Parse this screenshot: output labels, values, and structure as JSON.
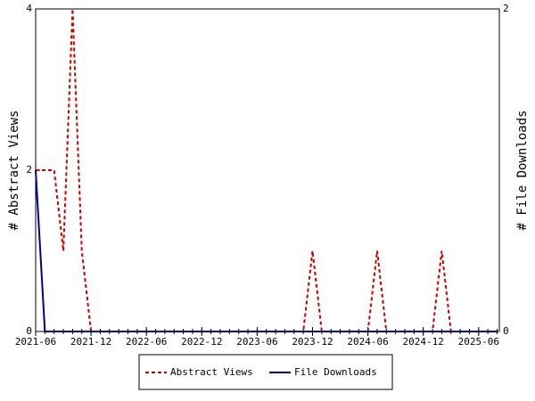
{
  "chart_data": {
    "type": "line",
    "ylabel": "# Abstract Views",
    "y2label": "# File Downloads",
    "x": [
      "2021-06",
      "2021-07",
      "2021-08",
      "2021-09",
      "2021-10",
      "2021-11",
      "2021-12",
      "2022-01",
      "2022-02",
      "2022-03",
      "2022-04",
      "2022-05",
      "2022-06",
      "2022-07",
      "2022-08",
      "2022-09",
      "2022-10",
      "2022-11",
      "2022-12",
      "2023-01",
      "2023-02",
      "2023-03",
      "2023-04",
      "2023-05",
      "2023-06",
      "2023-07",
      "2023-08",
      "2023-09",
      "2023-10",
      "2023-11",
      "2023-12",
      "2024-01",
      "2024-02",
      "2024-03",
      "2024-04",
      "2024-05",
      "2024-06",
      "2024-07",
      "2024-08",
      "2024-09",
      "2024-10",
      "2024-11",
      "2024-12",
      "2025-01",
      "2025-02",
      "2025-03",
      "2025-04",
      "2025-05",
      "2025-06",
      "2025-07",
      "2025-08"
    ],
    "series": [
      {
        "name": "Abstract Views",
        "color": "#cc0000",
        "dash": true,
        "values": [
          2,
          2,
          2,
          1,
          4,
          1,
          0,
          0,
          0,
          0,
          0,
          0,
          0,
          0,
          0,
          0,
          0,
          0,
          0,
          0,
          0,
          0,
          0,
          0,
          0,
          0,
          0,
          0,
          0,
          0,
          1,
          0,
          0,
          0,
          0,
          0,
          0,
          1,
          0,
          0,
          0,
          0,
          0,
          0,
          1,
          0,
          0,
          0,
          0,
          0,
          0
        ]
      },
      {
        "name": "File Downloads",
        "color": "#000099",
        "dash": false,
        "axis": "y2",
        "values": [
          1,
          0,
          0,
          0,
          0,
          0,
          0,
          0,
          0,
          0,
          0,
          0,
          0,
          0,
          0,
          0,
          0,
          0,
          0,
          0,
          0,
          0,
          0,
          0,
          0,
          0,
          0,
          0,
          0,
          0,
          0,
          0,
          0,
          0,
          0,
          0,
          0,
          0,
          0,
          0,
          0,
          0,
          0,
          0,
          0,
          0,
          0,
          0,
          0,
          0,
          0
        ]
      }
    ],
    "xticks": [
      "2021-06",
      "2021-12",
      "2022-06",
      "2022-12",
      "2023-06",
      "2023-12",
      "2024-06",
      "2024-12",
      "2025-06"
    ],
    "ylim": [
      0,
      4
    ],
    "yticks": [
      0,
      2,
      4
    ],
    "y2lim": [
      0,
      2
    ],
    "y2ticks": [
      0,
      2
    ]
  }
}
